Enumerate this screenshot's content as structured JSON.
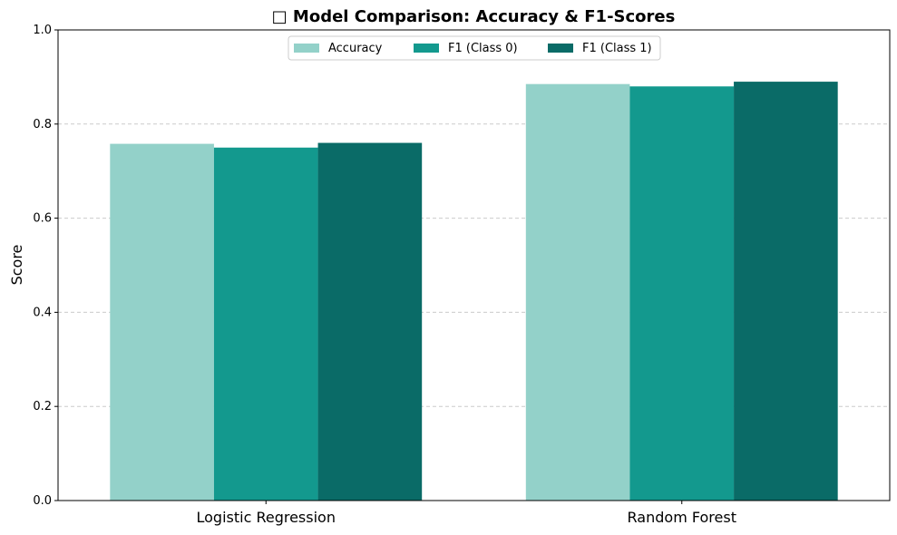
{
  "chart_data": {
    "type": "bar",
    "title": "□ Model Comparison: Accuracy & F1-Scores",
    "xlabel": "",
    "ylabel": "Score",
    "ylim": [
      0,
      1.0
    ],
    "yticks": [
      "0.0",
      "0.2",
      "0.4",
      "0.6",
      "0.8",
      "1.0"
    ],
    "categories": [
      "Logistic Regression",
      "Random Forest"
    ],
    "grid": "y-dashed",
    "legend_position": "top-center",
    "series": [
      {
        "name": "Accuracy",
        "color": "#93d1c9",
        "values": [
          0.758,
          0.885
        ]
      },
      {
        "name": "F1 (Class 0)",
        "color": "#13998e",
        "values": [
          0.75,
          0.88
        ]
      },
      {
        "name": "F1 (Class 1)",
        "color": "#0a6b67",
        "values": [
          0.76,
          0.89
        ]
      }
    ]
  }
}
